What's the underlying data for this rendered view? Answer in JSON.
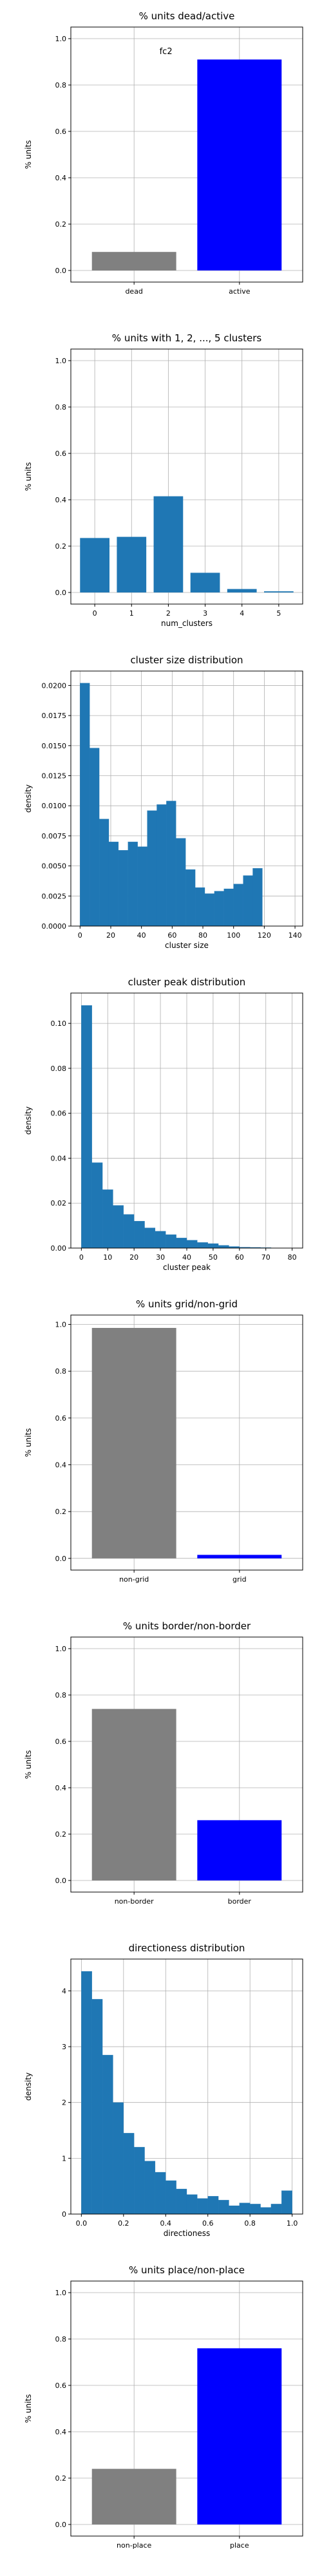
{
  "figure": {
    "colors": {
      "primary": "#1f77b4",
      "dead": "#808080",
      "active": "#0000ff",
      "grid": "#b0b0b0"
    }
  },
  "chart_data": [
    {
      "type": "bar",
      "title": "% units dead/active",
      "xlabel": "",
      "ylabel": "% units",
      "annotation": "fc2",
      "categories": [
        "dead",
        "active"
      ],
      "values": [
        0.08,
        0.91
      ],
      "colors": [
        "#808080",
        "#0000ff"
      ],
      "xlim": [
        -0.6,
        1.6
      ],
      "ylim": [
        -0.05,
        1.05
      ],
      "yticks": [
        0.0,
        0.2,
        0.4,
        0.6,
        0.8,
        1.0
      ],
      "ytick_labels": [
        "0.0",
        "0.2",
        "0.4",
        "0.6",
        "0.8",
        "1.0"
      ],
      "bar_width": 0.8,
      "grid": true
    },
    {
      "type": "bar",
      "title": "% units with 1, 2, ..., 5 clusters",
      "xlabel": "num_clusters",
      "ylabel": "% units",
      "categories": [
        "0",
        "1",
        "2",
        "3",
        "4",
        "5"
      ],
      "values": [
        0.235,
        0.24,
        0.415,
        0.085,
        0.015,
        0.005
      ],
      "colors": [
        "#1f77b4",
        "#1f77b4",
        "#1f77b4",
        "#1f77b4",
        "#1f77b4",
        "#1f77b4"
      ],
      "xlim": [
        -0.65,
        5.65
      ],
      "ylim": [
        -0.05,
        1.05
      ],
      "yticks": [
        0.0,
        0.2,
        0.4,
        0.6,
        0.8,
        1.0
      ],
      "ytick_labels": [
        "0.0",
        "0.2",
        "0.4",
        "0.6",
        "0.8",
        "1.0"
      ],
      "bar_width": 0.8,
      "grid": true
    },
    {
      "type": "histogram",
      "title": "cluster size distribution",
      "xlabel": "cluster size",
      "ylabel": "density",
      "bin_start": 0,
      "bin_width": 6.25,
      "values": [
        0.0202,
        0.0148,
        0.0089,
        0.007,
        0.0063,
        0.007,
        0.0066,
        0.0096,
        0.0101,
        0.0104,
        0.0073,
        0.0047,
        0.0032,
        0.0027,
        0.0029,
        0.0031,
        0.0035,
        0.0042,
        0.0048
      ],
      "color": "#1f77b4",
      "xlim": [
        -6,
        145
      ],
      "ylim": [
        0,
        0.0212
      ],
      "xticks": [
        0,
        20,
        40,
        60,
        80,
        100,
        120,
        140
      ],
      "xtick_labels": [
        "0",
        "20",
        "40",
        "60",
        "80",
        "100",
        "120",
        "140"
      ],
      "yticks": [
        0.0,
        0.0025,
        0.005,
        0.0075,
        0.01,
        0.0125,
        0.015,
        0.0175,
        0.02
      ],
      "ytick_labels": [
        "0.0000",
        "0.0025",
        "0.0050",
        "0.0075",
        "0.0100",
        "0.0125",
        "0.0150",
        "0.0175",
        "0.0200"
      ],
      "grid": true
    },
    {
      "type": "histogram",
      "title": "cluster peak distribution",
      "xlabel": "cluster peak",
      "ylabel": "density",
      "bin_start": 0,
      "bin_width": 4,
      "values": [
        0.108,
        0.038,
        0.026,
        0.019,
        0.015,
        0.012,
        0.009,
        0.0075,
        0.006,
        0.0045,
        0.0035,
        0.0025,
        0.002,
        0.0012,
        0.0007,
        0.0004,
        0.0003,
        0.0002,
        0.0001,
        0.0001
      ],
      "color": "#1f77b4",
      "xlim": [
        -4,
        84
      ],
      "ylim": [
        0,
        0.1135
      ],
      "xticks": [
        0,
        10,
        20,
        30,
        40,
        50,
        60,
        70,
        80
      ],
      "xtick_labels": [
        "0",
        "10",
        "20",
        "30",
        "40",
        "50",
        "60",
        "70",
        "80"
      ],
      "yticks": [
        0.0,
        0.02,
        0.04,
        0.06,
        0.08,
        0.1
      ],
      "ytick_labels": [
        "0.00",
        "0.02",
        "0.04",
        "0.06",
        "0.08",
        "0.10"
      ],
      "grid": true
    },
    {
      "type": "bar",
      "title": "% units grid/non-grid",
      "xlabel": "",
      "ylabel": "% units",
      "categories": [
        "non-grid",
        "grid"
      ],
      "values": [
        0.985,
        0.015
      ],
      "colors": [
        "#808080",
        "#0000ff"
      ],
      "xlim": [
        -0.6,
        1.6
      ],
      "ylim": [
        -0.05,
        1.04
      ],
      "yticks": [
        0.0,
        0.2,
        0.4,
        0.6,
        0.8,
        1.0
      ],
      "ytick_labels": [
        "0.0",
        "0.2",
        "0.4",
        "0.6",
        "0.8",
        "1.0"
      ],
      "bar_width": 0.8,
      "grid": true
    },
    {
      "type": "bar",
      "title": "% units border/non-border",
      "xlabel": "",
      "ylabel": "% units",
      "categories": [
        "non-border",
        "border"
      ],
      "values": [
        0.74,
        0.26
      ],
      "colors": [
        "#808080",
        "#0000ff"
      ],
      "xlim": [
        -0.6,
        1.6
      ],
      "ylim": [
        -0.05,
        1.05
      ],
      "yticks": [
        0.0,
        0.2,
        0.4,
        0.6,
        0.8,
        1.0
      ],
      "ytick_labels": [
        "0.0",
        "0.2",
        "0.4",
        "0.6",
        "0.8",
        "1.0"
      ],
      "bar_width": 0.8,
      "grid": true
    },
    {
      "type": "histogram",
      "title": "directioness distribution",
      "xlabel": "directioness",
      "ylabel": "density",
      "bin_start": 0,
      "bin_width": 0.05,
      "values": [
        4.35,
        3.85,
        2.85,
        2.0,
        1.45,
        1.2,
        0.95,
        0.75,
        0.6,
        0.45,
        0.35,
        0.28,
        0.32,
        0.25,
        0.15,
        0.2,
        0.18,
        0.12,
        0.18,
        0.42
      ],
      "color": "#1f77b4",
      "xlim": [
        -0.05,
        1.05
      ],
      "ylim": [
        0,
        4.57
      ],
      "xticks": [
        0.0,
        0.2,
        0.4,
        0.6,
        0.8,
        1.0
      ],
      "xtick_labels": [
        "0.0",
        "0.2",
        "0.4",
        "0.6",
        "0.8",
        "1.0"
      ],
      "yticks": [
        0,
        1,
        2,
        3,
        4
      ],
      "ytick_labels": [
        "0",
        "1",
        "2",
        "3",
        "4"
      ],
      "grid": true
    },
    {
      "type": "bar",
      "title": "% units place/non-place",
      "xlabel": "",
      "ylabel": "% units",
      "categories": [
        "non-place",
        "place"
      ],
      "values": [
        0.24,
        0.76
      ],
      "colors": [
        "#808080",
        "#0000ff"
      ],
      "xlim": [
        -0.6,
        1.6
      ],
      "ylim": [
        -0.05,
        1.05
      ],
      "yticks": [
        0.0,
        0.2,
        0.4,
        0.6,
        0.8,
        1.0
      ],
      "ytick_labels": [
        "0.0",
        "0.2",
        "0.4",
        "0.6",
        "0.8",
        "1.0"
      ],
      "bar_width": 0.8,
      "grid": true
    }
  ]
}
